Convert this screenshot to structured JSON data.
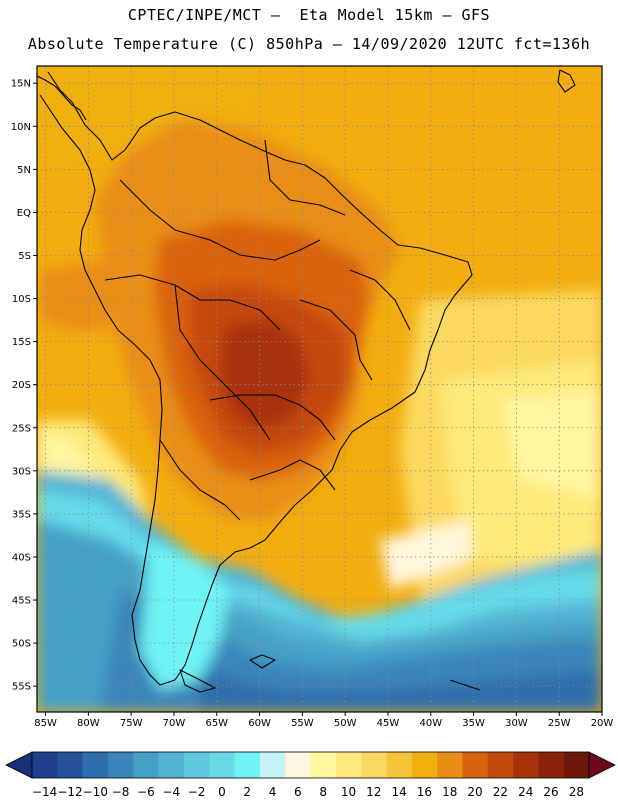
{
  "header": {
    "line1": "CPTEC/INPE/MCT –  Eta Model 15km – GFS",
    "line2": "Absolute Temperature (C) 850hPa – 14/09/2020 12UTC fct=136h"
  },
  "map": {
    "lon_range": [
      -86,
      -20
    ],
    "lat_range": [
      -58,
      17
    ],
    "lat_ticks": [
      "15N",
      "10N",
      "5N",
      "EQ",
      "5S",
      "10S",
      "15S",
      "20S",
      "25S",
      "30S",
      "35S",
      "40S",
      "45S",
      "50S",
      "55S"
    ],
    "lat_values": [
      15,
      10,
      5,
      0,
      -5,
      -10,
      -15,
      -20,
      -25,
      -30,
      -35,
      -40,
      -45,
      -50,
      -55
    ],
    "lon_ticks": [
      "85W",
      "80W",
      "75W",
      "70W",
      "65W",
      "60W",
      "55W",
      "50W",
      "45W",
      "40W",
      "35W",
      "30W",
      "25W",
      "20W"
    ],
    "lon_values": [
      -85,
      -80,
      -75,
      -70,
      -65,
      -60,
      -55,
      -50,
      -45,
      -40,
      -35,
      -30,
      -25,
      -20
    ]
  },
  "colorbar": {
    "unit": "C",
    "labels": [
      "-14",
      "-12",
      "-10",
      "-8",
      "-6",
      "-4",
      "-2",
      "0",
      "2",
      "4",
      "6",
      "8",
      "10",
      "12",
      "14",
      "16",
      "18",
      "20",
      "22",
      "24",
      "26",
      "28"
    ],
    "colors": [
      "#1e3f8e",
      "#24539c",
      "#2f6eae",
      "#3a85bb",
      "#45a0c8",
      "#52b4d4",
      "#5ec8de",
      "#66dbe8",
      "#6ff3f3",
      "#c4f4f8",
      "#fff7dd",
      "#fff6a0",
      "#fdea7a",
      "#fbd960",
      "#f5c537",
      "#f0b010",
      "#e98e14",
      "#d9620c",
      "#c44a0a",
      "#a8330a",
      "#8a2208",
      "#6e1708"
    ],
    "low_arrow_color": "#1a2f7a",
    "high_arrow_color": "#6b0a1e"
  }
}
